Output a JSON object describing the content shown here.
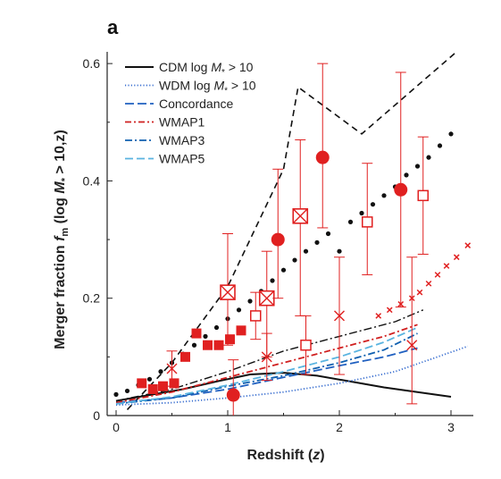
{
  "chart_data": {
    "type": "line",
    "panel_label": "a",
    "title": "",
    "xlabel_main": "Redshift (",
    "xlabel_var": "z",
    "xlabel_end": ")",
    "ylabel_main": "Merger fraction ",
    "ylabel_f": "f",
    "ylabel_m": "m",
    "ylabel_paren": " (log ",
    "ylabel_M": "M",
    "ylabel_star": "*",
    "ylabel_end": " > 10,z)",
    "xlim": [
      -0.08,
      3.2
    ],
    "ylim": [
      0,
      0.62
    ],
    "x_ticks": [
      "0",
      "1",
      "2",
      "3"
    ],
    "y_ticks": [
      "0",
      "0.2",
      "0.4",
      "0.6"
    ],
    "x_tick_values": [
      0,
      1,
      2,
      3
    ],
    "y_tick_values": [
      0,
      0.2,
      0.4,
      0.6
    ],
    "legend_position": "top-left",
    "series": [
      {
        "name": "CDM log M* > 10",
        "legend_main": "CDM log ",
        "legend_var": "M",
        "legend_sub": "*",
        "legend_end": " > 10",
        "color": "#111111",
        "dash": "",
        "width": 2,
        "x": [
          0.0,
          0.3,
          0.6,
          0.9,
          1.2,
          1.5,
          1.8,
          2.1,
          2.4,
          2.7,
          3.0
        ],
        "y": [
          0.025,
          0.035,
          0.045,
          0.058,
          0.07,
          0.073,
          0.068,
          0.058,
          0.048,
          0.04,
          0.032
        ]
      },
      {
        "name": "WDM log M* > 10",
        "legend_main": "WDM log ",
        "legend_var": "M",
        "legend_sub": "*",
        "legend_end": " > 10",
        "color": "#3a6fd0",
        "dash": "1.2 2.2",
        "width": 1.8,
        "x": [
          0.0,
          0.5,
          1.0,
          1.5,
          2.0,
          2.5,
          3.0,
          3.15
        ],
        "y": [
          0.018,
          0.022,
          0.03,
          0.04,
          0.055,
          0.075,
          0.108,
          0.118
        ]
      },
      {
        "name": "Concordance",
        "legend_main": "Concordance",
        "legend_var": "",
        "legend_sub": "",
        "legend_end": "",
        "color": "#2060c0",
        "dash": "10 4",
        "width": 1.8,
        "x": [
          0.0,
          0.5,
          1.0,
          1.5,
          2.0,
          2.4,
          2.7
        ],
        "y": [
          0.022,
          0.03,
          0.045,
          0.065,
          0.085,
          0.1,
          0.115
        ]
      },
      {
        "name": "WMAP1",
        "legend_main": "WMAP1",
        "legend_var": "",
        "legend_sub": "",
        "legend_end": "",
        "color": "#d02020",
        "dash": "7 3 2 3",
        "width": 1.8,
        "x": [
          0.0,
          0.5,
          1.0,
          1.5,
          2.0,
          2.4,
          2.7
        ],
        "y": [
          0.022,
          0.04,
          0.065,
          0.09,
          0.115,
          0.135,
          0.155
        ]
      },
      {
        "name": "WMAP3",
        "legend_main": "WMAP3",
        "legend_var": "",
        "legend_sub": "",
        "legend_end": "",
        "color": "#1060b0",
        "dash": "8 3 2 3",
        "width": 1.8,
        "x": [
          0.0,
          0.5,
          1.0,
          1.5,
          2.0,
          2.4,
          2.7
        ],
        "y": [
          0.02,
          0.03,
          0.05,
          0.068,
          0.09,
          0.112,
          0.14
        ]
      },
      {
        "name": "WMAP5",
        "legend_main": "WMAP5",
        "legend_var": "",
        "legend_sub": "",
        "legend_end": "",
        "color": "#5ab4e0",
        "dash": "9 4",
        "width": 1.8,
        "x": [
          0.0,
          0.5,
          1.0,
          1.5,
          2.0,
          2.4,
          2.7
        ],
        "y": [
          0.02,
          0.032,
          0.052,
          0.075,
          0.1,
          0.125,
          0.15
        ]
      }
    ],
    "extra_lines": [
      {
        "style": "dashed-black",
        "color": "#111111",
        "dash": "7 5",
        "width": 1.6,
        "x": [
          0.1,
          0.5,
          1.0,
          1.5,
          1.63,
          2.2,
          3.05
        ],
        "y": [
          0.01,
          0.09,
          0.22,
          0.42,
          0.56,
          0.48,
          0.62
        ]
      },
      {
        "style": "dash-dot-black",
        "color": "#111111",
        "dash": "9 3 2 3",
        "width": 1.4,
        "x": [
          0.0,
          0.5,
          1.0,
          1.5,
          2.0,
          2.5,
          2.75
        ],
        "y": [
          0.025,
          0.045,
          0.075,
          0.11,
          0.135,
          0.16,
          0.18
        ]
      }
    ],
    "dotted_black": {
      "x": [
        0.0,
        0.1,
        0.2,
        0.3,
        0.4,
        0.5,
        0.6,
        0.7,
        0.8,
        0.9,
        1.0,
        1.1,
        1.2,
        1.3,
        1.4,
        1.5,
        1.6,
        1.7,
        1.8,
        1.9,
        2.0,
        2.1,
        2.2,
        2.3,
        2.4,
        2.5,
        2.6,
        2.7,
        2.8,
        2.9,
        3.0
      ],
      "y": [
        0.036,
        0.042,
        0.052,
        0.062,
        0.075,
        0.09,
        0.105,
        0.12,
        0.135,
        0.15,
        0.165,
        0.18,
        0.195,
        0.212,
        0.23,
        0.248,
        0.265,
        0.28,
        0.295,
        0.31,
        0.28,
        0.33,
        0.345,
        0.36,
        0.375,
        0.39,
        0.41,
        0.425,
        0.44,
        0.46,
        0.48
      ]
    },
    "red_x_markers": {
      "x": [
        2.35,
        2.45,
        2.55,
        2.65,
        2.72,
        2.8,
        2.88,
        2.96,
        3.05,
        3.15
      ],
      "y": [
        0.17,
        0.18,
        0.19,
        0.2,
        0.21,
        0.225,
        0.24,
        0.255,
        0.27,
        0.29
      ]
    },
    "filled_squares": {
      "x": [
        0.23,
        0.33,
        0.42,
        0.52,
        0.62,
        0.72,
        0.82,
        0.92,
        1.02,
        1.12
      ],
      "y": [
        0.055,
        0.045,
        0.05,
        0.055,
        0.1,
        0.14,
        0.12,
        0.12,
        0.13,
        0.145
      ]
    },
    "filled_circles": {
      "x": [
        1.05,
        1.45,
        1.85,
        2.55
      ],
      "y": [
        0.035,
        0.3,
        0.44,
        0.385
      ],
      "yerr_low": [
        0.07,
        0.1,
        0.12,
        0.2
      ],
      "yerr_high": [
        0.06,
        0.12,
        0.16,
        0.2
      ]
    },
    "open_squares": {
      "x": [
        1.25,
        1.7,
        2.25,
        2.75
      ],
      "y": [
        0.17,
        0.12,
        0.33,
        0.375
      ],
      "yerr_low": [
        0.04,
        0.05,
        0.09,
        0.1
      ],
      "yerr_high": [
        0.04,
        0.05,
        0.1,
        0.1
      ]
    },
    "open_squares_x": {
      "x": [
        1.0,
        1.35,
        1.65
      ],
      "y": [
        0.21,
        0.2,
        0.34
      ],
      "yerr_low": [
        0.09,
        0.1,
        0.17
      ],
      "yerr_high": [
        0.1,
        0.08,
        0.13
      ]
    },
    "red_x_errorbars": {
      "x": [
        0.5,
        1.35,
        2.0,
        2.65
      ],
      "y": [
        0.08,
        0.1,
        0.17,
        0.12
      ],
      "yerr_low": [
        0.03,
        0.04,
        0.1,
        0.1
      ],
      "yerr_high": [
        0.03,
        0.04,
        0.1,
        0.15
      ]
    }
  }
}
